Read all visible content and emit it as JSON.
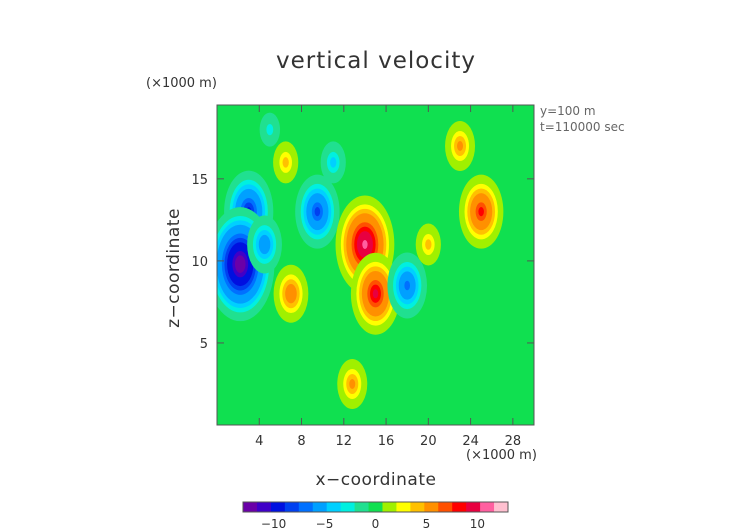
{
  "chart_data": {
    "type": "heatmap",
    "title": "vertical velocity",
    "xlabel": "x−coordinate",
    "ylabel": "z−coordinate",
    "x_unit": "(×1000 m)",
    "y_unit": "(×1000 m)",
    "annotations": [
      "y=100 m",
      "t=110000 sec"
    ],
    "xlim": [
      0,
      30
    ],
    "ylim": [
      0,
      19.5
    ],
    "x_ticks": [
      4,
      8,
      12,
      16,
      20,
      24,
      28
    ],
    "y_ticks": [
      5,
      10,
      15
    ],
    "colorbar": {
      "range": [
        -13,
        13
      ],
      "ticks": [
        -10,
        -5,
        0,
        5,
        10
      ],
      "tick_labels": [
        "−10",
        "−5",
        "0",
        "5",
        "10"
      ],
      "colors": [
        "#6a00a8",
        "#4000c8",
        "#0010e0",
        "#0040f0",
        "#0070ff",
        "#00a0ff",
        "#00d0ff",
        "#00f0e0",
        "#20e090",
        "#10e050",
        "#a0f000",
        "#ffff00",
        "#ffc000",
        "#ff9000",
        "#ff5000",
        "#ff0000",
        "#e80040",
        "#ff60a0",
        "#ffc0d0"
      ]
    },
    "background_value": 0,
    "features": [
      {
        "x": 3,
        "z": 13,
        "value": -9
      },
      {
        "x": 2.2,
        "z": 9.8,
        "value": -13
      },
      {
        "x": 9.5,
        "z": 13,
        "value": -8
      },
      {
        "x": 4.5,
        "z": 11,
        "value": -6
      },
      {
        "x": 6.5,
        "z": 16,
        "value": 4
      },
      {
        "x": 7,
        "z": 8,
        "value": 6
      },
      {
        "x": 14,
        "z": 11,
        "value": 11
      },
      {
        "x": 15,
        "z": 8,
        "value": 9
      },
      {
        "x": 18,
        "z": 8.5,
        "value": -7
      },
      {
        "x": 20,
        "z": 11,
        "value": 4
      },
      {
        "x": 25,
        "z": 13,
        "value": 8
      },
      {
        "x": 23,
        "z": 17,
        "value": 5
      },
      {
        "x": 12.8,
        "z": 2.5,
        "value": 5
      },
      {
        "x": 5,
        "z": 18,
        "value": -3
      },
      {
        "x": 11,
        "z": 16,
        "value": -4
      }
    ]
  }
}
